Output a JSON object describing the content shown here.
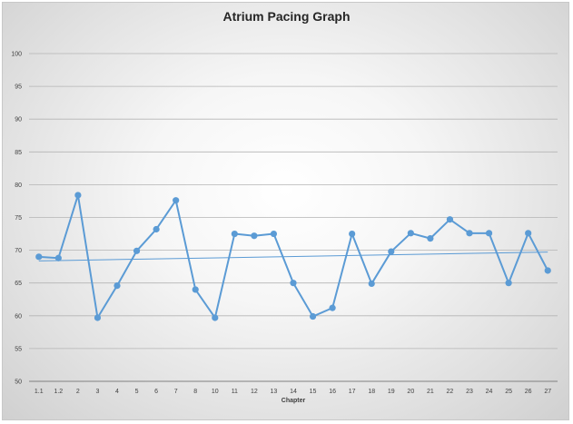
{
  "chart_data": {
    "type": "line",
    "title": "Atrium Pacing Graph",
    "xlabel": "Chapter",
    "ylabel": "",
    "ylim": [
      50,
      100
    ],
    "yticks": [
      "50",
      "55",
      "60",
      "65",
      "70",
      "75",
      "80",
      "85",
      "90",
      "95",
      "100"
    ],
    "categories": [
      "1.1",
      "1.2",
      "2",
      "3",
      "4",
      "5",
      "6",
      "7",
      "8",
      "10",
      "11",
      "12",
      "13",
      "14",
      "15",
      "16",
      "17",
      "18",
      "19",
      "20",
      "21",
      "22",
      "23",
      "24",
      "25",
      "26",
      "27"
    ],
    "series": [
      {
        "values": [
          69.0,
          68.8,
          78.4,
          59.7,
          64.6,
          69.9,
          73.2,
          77.6,
          64.0,
          59.7,
          72.5,
          72.2,
          72.5,
          65.0,
          59.9,
          61.2,
          72.5,
          64.9,
          69.8,
          72.6,
          71.8,
          74.7,
          72.6,
          72.6,
          65.0,
          72.6,
          66.9
        ],
        "color": "#5b9bd5"
      }
    ],
    "trendline": {
      "type": "linear",
      "color": "#5b9bd5"
    },
    "grid": true,
    "legend": "none"
  }
}
